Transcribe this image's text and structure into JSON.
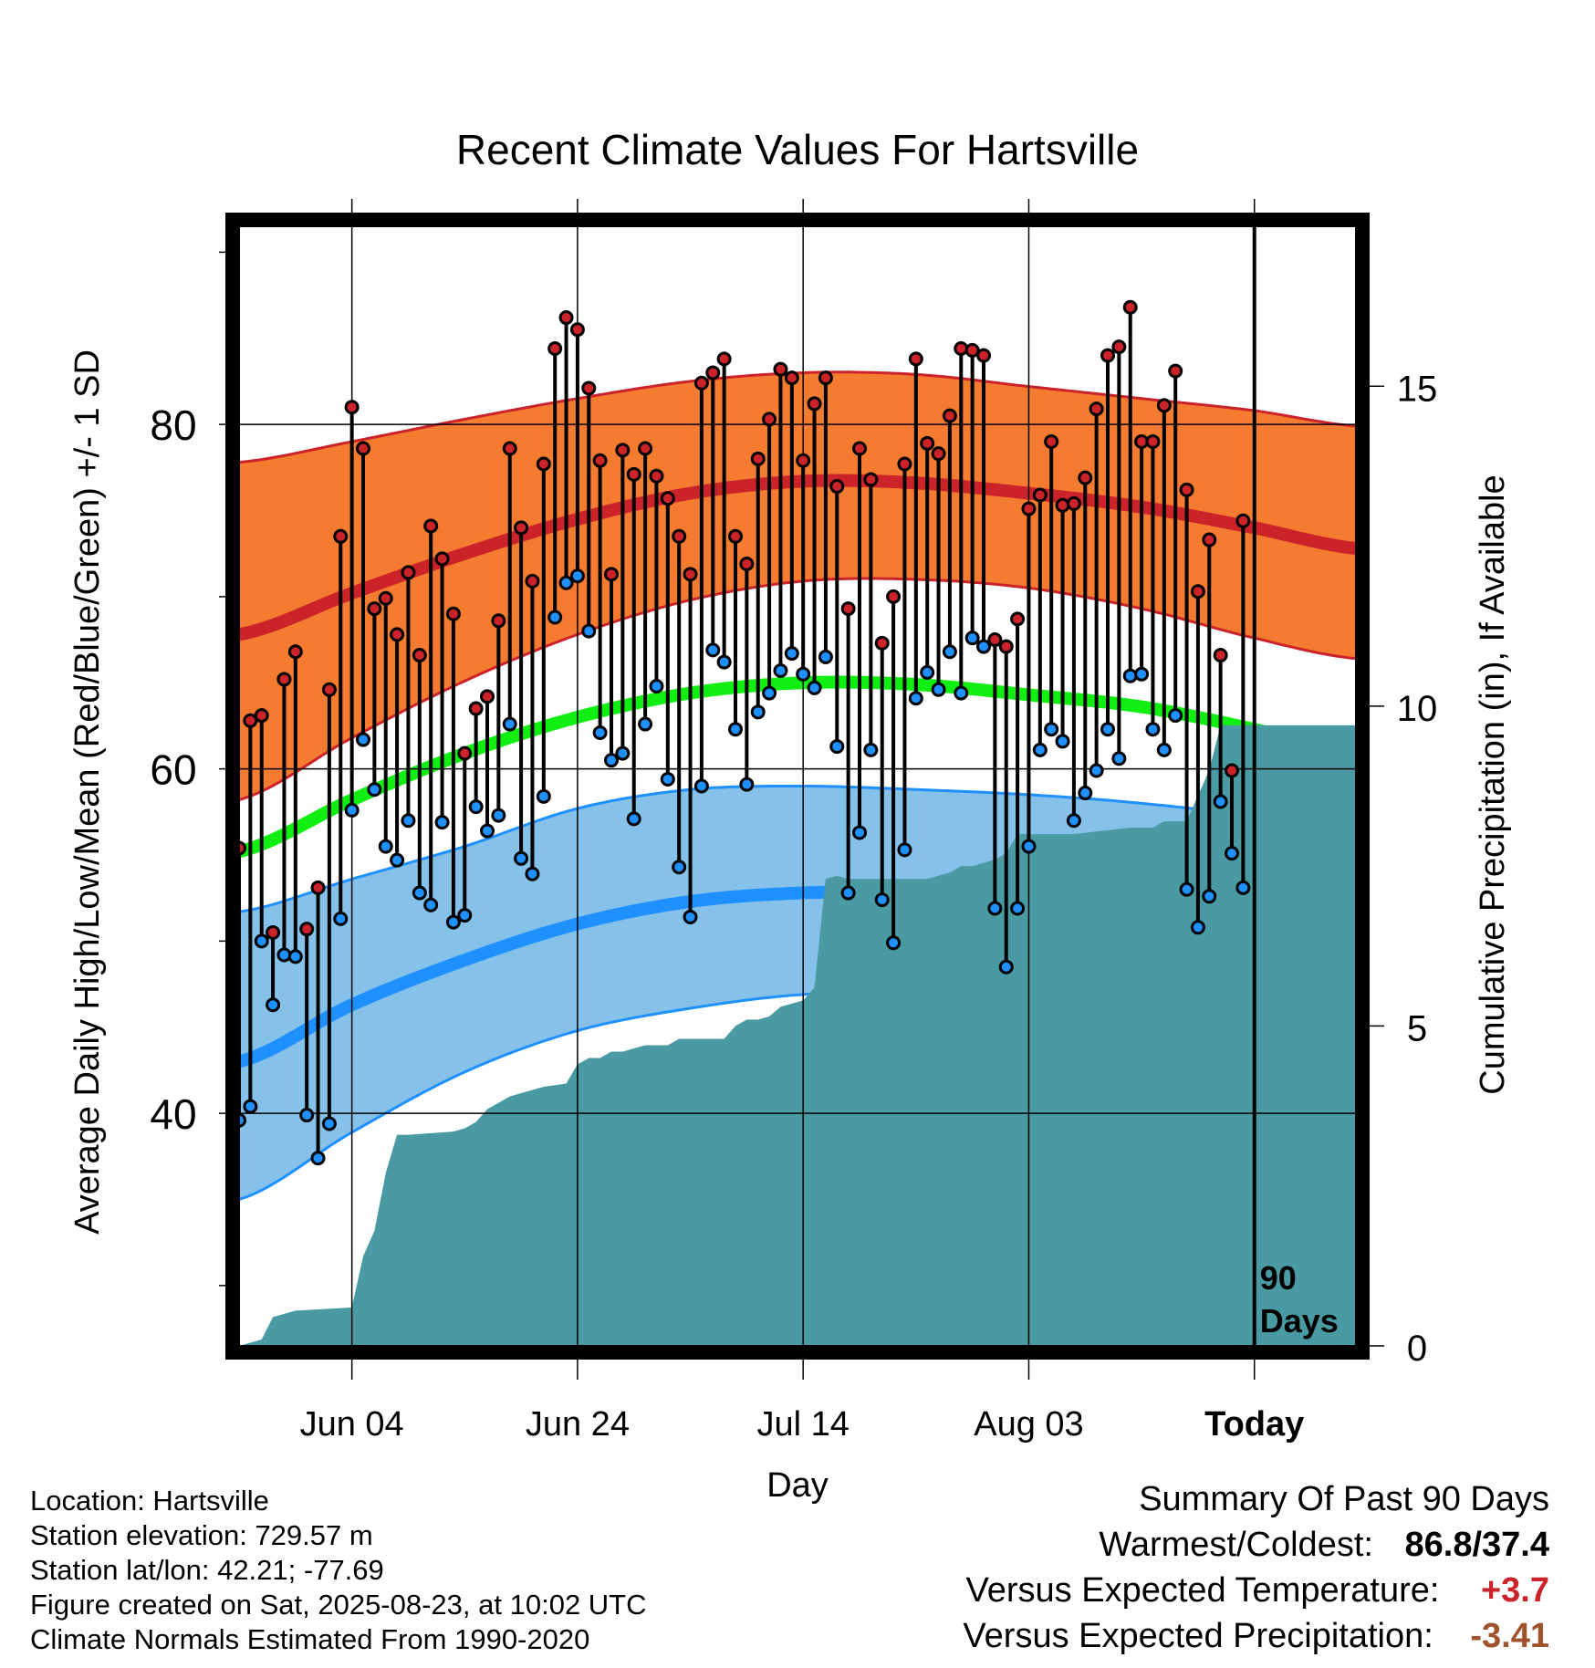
{
  "chart_data": {
    "type": "line",
    "title": "Recent Climate Values For Hartsville",
    "xlabel": "Day",
    "ylabel": "Average Daily High/Low/Mean (Red/Blue/Green) +/- 1 SD",
    "y2label": "Cumulative Precipitation (in), If Available",
    "ylim": [
      26.5,
      91.5
    ],
    "y2lim": [
      0,
      17.5
    ],
    "y_ticks": [
      "40",
      "60",
      "80"
    ],
    "y2_ticks": [
      "0",
      "5",
      "10",
      "15"
    ],
    "x_range_days": [
      -90,
      9
    ],
    "x_ticks": [
      {
        "label": "Jun 04",
        "day": -80
      },
      {
        "label": "Jun 24",
        "day": -60
      },
      {
        "label": "Jul 14",
        "day": -40
      },
      {
        "label": "Aug 03",
        "day": -20
      },
      {
        "label": "Today",
        "day": 0
      }
    ],
    "today_label": "90\nDays",
    "colors": {
      "high": "#cc2229",
      "high_band": "#f47b30",
      "low": "#1e90ff",
      "low_band": "#85c1e9",
      "mean": "#11ee11",
      "precip": "#4a9aa3",
      "high_point": "#cc2229",
      "low_point": "#1e90ff"
    },
    "normals": {
      "days": [
        -90,
        -80,
        -70,
        -60,
        -50,
        -40,
        -30,
        -20,
        -10,
        0,
        9
      ],
      "high_mean": [
        67.8,
        70.2,
        72.5,
        74.5,
        76.0,
        76.7,
        76.6,
        76.0,
        75.2,
        74.0,
        72.8
      ],
      "high_upper": [
        77.8,
        79.0,
        80.3,
        81.5,
        82.5,
        83.0,
        82.9,
        82.2,
        81.5,
        80.8,
        79.9
      ],
      "high_lower": [
        58.2,
        61.8,
        65.1,
        67.8,
        69.8,
        70.9,
        71.0,
        70.5,
        69.3,
        67.6,
        66.4
      ],
      "low_mean": [
        43.0,
        46.3,
        48.9,
        51.0,
        52.3,
        52.8,
        52.8,
        52.5,
        51.8,
        50.6,
        49.0
      ],
      "low_upper": [
        51.7,
        53.6,
        55.5,
        57.7,
        58.8,
        59.0,
        58.8,
        58.5,
        58.0,
        57.2,
        55.7
      ],
      "low_lower": [
        35.0,
        38.9,
        42.4,
        44.8,
        46.1,
        46.9,
        47.0,
        46.7,
        46.3,
        45.2,
        42.8
      ],
      "mean": [
        55.2,
        58.2,
        60.9,
        63.0,
        64.4,
        65.0,
        64.9,
        64.3,
        63.6,
        62.3,
        60.8
      ]
    },
    "daily": {
      "start_day": -90,
      "highs": [
        55.4,
        62.8,
        63.1,
        50.5,
        65.2,
        66.8,
        50.7,
        53.1,
        64.6,
        73.5,
        81.0,
        78.6,
        69.3,
        69.9,
        67.8,
        71.4,
        66.6,
        74.1,
        72.2,
        69.0,
        60.9,
        63.5,
        64.2,
        68.6,
        78.6,
        74.0,
        70.9,
        77.7,
        84.4,
        86.2,
        85.5,
        82.1,
        77.9,
        71.3,
        78.5,
        77.1,
        78.6,
        77.0,
        75.7,
        73.5,
        71.3,
        82.4,
        83.0,
        83.8,
        73.5,
        71.9,
        78.0,
        80.3,
        83.2,
        82.7,
        77.9,
        81.2,
        82.7,
        76.4,
        69.3,
        78.6,
        76.8,
        67.3,
        70.0,
        77.7,
        83.8,
        78.9,
        78.3,
        80.5,
        84.4,
        84.3,
        84.0,
        67.5,
        67.1,
        68.7,
        75.1,
        75.9,
        79.0,
        75.3,
        75.4,
        76.9,
        80.9,
        84.0,
        84.5,
        86.8,
        79.0,
        79.0,
        81.1,
        83.1,
        76.2,
        70.3,
        73.3,
        66.6,
        59.9,
        74.4
      ],
      "lows": [
        39.6,
        40.4,
        50.0,
        46.3,
        49.2,
        49.1,
        39.9,
        37.4,
        39.4,
        51.3,
        57.6,
        61.7,
        58.8,
        55.5,
        54.7,
        57.0,
        52.8,
        52.1,
        56.9,
        51.1,
        51.5,
        57.8,
        56.4,
        57.3,
        62.6,
        54.8,
        53.9,
        58.4,
        68.8,
        70.8,
        71.2,
        68.0,
        62.1,
        60.5,
        60.9,
        57.1,
        62.6,
        64.8,
        59.4,
        54.3,
        51.4,
        59.0,
        66.9,
        66.2,
        62.3,
        59.1,
        63.3,
        64.4,
        65.7,
        66.7,
        65.5,
        64.7,
        66.5,
        61.3,
        52.8,
        56.3,
        61.1,
        52.4,
        49.9,
        55.3,
        64.1,
        65.6,
        64.6,
        66.8,
        64.4,
        67.6,
        67.1,
        51.9,
        48.5,
        51.9,
        55.5,
        61.1,
        62.3,
        61.6,
        57.0,
        58.6,
        59.9,
        62.3,
        60.6,
        65.4,
        65.5,
        62.3,
        61.1,
        63.1,
        53.0,
        50.8,
        52.6,
        58.1,
        55.1,
        53.1
      ]
    },
    "precip_cumulative": {
      "days": [
        -90,
        -88,
        -87,
        -86,
        -85,
        -80,
        -79,
        -78,
        -77,
        -76,
        -75,
        -71,
        -70,
        -69,
        -68,
        -66,
        -65,
        -64,
        -63,
        -61,
        -60,
        -59,
        -58,
        -57,
        -56,
        -55,
        -54,
        -52,
        -51,
        -50,
        -47,
        -46,
        -45,
        -44,
        -43,
        -42,
        -40,
        -39,
        -38,
        -37,
        -36,
        -29,
        -28,
        -27,
        -26,
        -25,
        -24,
        -23,
        -22,
        -21,
        -20,
        -19,
        -18,
        -16,
        -11,
        -10,
        -9,
        -8,
        -7,
        -6,
        -5,
        -4,
        -3,
        -2,
        -1,
        0,
        9
      ],
      "values": [
        0,
        0.1,
        0.45,
        0.5,
        0.55,
        0.6,
        1.4,
        1.8,
        2.7,
        3.3,
        3.3,
        3.35,
        3.4,
        3.5,
        3.7,
        3.9,
        3.95,
        4.0,
        4.05,
        4.1,
        4.4,
        4.5,
        4.5,
        4.6,
        4.6,
        4.65,
        4.7,
        4.7,
        4.8,
        4.8,
        4.8,
        5.0,
        5.1,
        5.1,
        5.15,
        5.3,
        5.4,
        5.6,
        7.3,
        7.35,
        7.3,
        7.3,
        7.35,
        7.4,
        7.5,
        7.5,
        7.55,
        7.6,
        7.7,
        8.0,
        8.0,
        8.0,
        8.0,
        8.0,
        8.1,
        8.1,
        8.1,
        8.2,
        8.2,
        8.2,
        8.6,
        9.0,
        9.7,
        9.7,
        9.7,
        9.7,
        9.7
      ]
    }
  },
  "footer": {
    "location": "Location: Hartsville",
    "elevation": "Station elevation: 729.57 m",
    "latlon": "Station lat/lon: 42.21; -77.69",
    "created": "Figure created on Sat, 2025-08-23, at 10:02 UTC",
    "normals_period": "Climate Normals Estimated From 1990-2020"
  },
  "summary": {
    "title": "Summary Of Past 90 Days",
    "warmest_coldest_label": "Warmest/Coldest:",
    "warmest_coldest_value": "86.8/37.4",
    "temp_label": "Versus Expected Temperature:",
    "temp_value": "+3.7",
    "temp_color": "#cc2229",
    "precip_label": "Versus Expected Precipitation:",
    "precip_value": "-3.41",
    "precip_color": "#a0522d"
  }
}
